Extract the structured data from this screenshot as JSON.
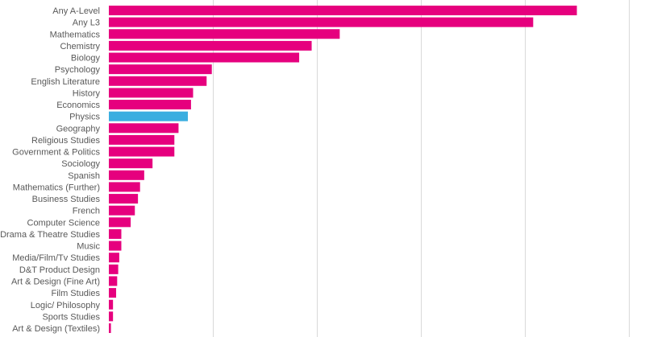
{
  "chart_data": {
    "type": "bar",
    "orientation": "horizontal",
    "title": "",
    "xlabel": "",
    "ylabel": "",
    "categories": [
      "Any A-Level",
      "Any L3",
      "Mathematics",
      "Chemistry",
      "Biology",
      "Psychology",
      "English Literature",
      "History",
      "Economics",
      "Physics",
      "Geography",
      "Religious Studies",
      "Government & Politics",
      "Sociology",
      "Spanish",
      "Mathematics (Further)",
      "Business Studies",
      "French",
      "Computer Science",
      "Drama & Theatre Studies",
      "Music",
      "Media/Film/Tv Studies",
      "D&T Product Design",
      "Art & Design (Fine Art)",
      "Film Studies",
      "Logic/ Philosophy",
      "Sports Studies",
      "Art & Design (Textiles)"
    ],
    "values": [
      4.5,
      4.08,
      2.22,
      1.95,
      1.83,
      0.99,
      0.94,
      0.81,
      0.79,
      0.76,
      0.67,
      0.63,
      0.63,
      0.42,
      0.34,
      0.3,
      0.28,
      0.25,
      0.21,
      0.12,
      0.12,
      0.1,
      0.09,
      0.08,
      0.07,
      0.04,
      0.04,
      0.02
    ],
    "xlim": [
      0,
      5
    ],
    "gridlines_x": [
      1,
      2,
      3,
      4,
      5
    ],
    "grid": true,
    "legend": "none",
    "highlighted_category": "Physics",
    "colors": {
      "default_bar": "#e6007e",
      "highlight_bar": "#3aaee0",
      "grid": "#d9d9d9",
      "label": "#595959"
    }
  }
}
